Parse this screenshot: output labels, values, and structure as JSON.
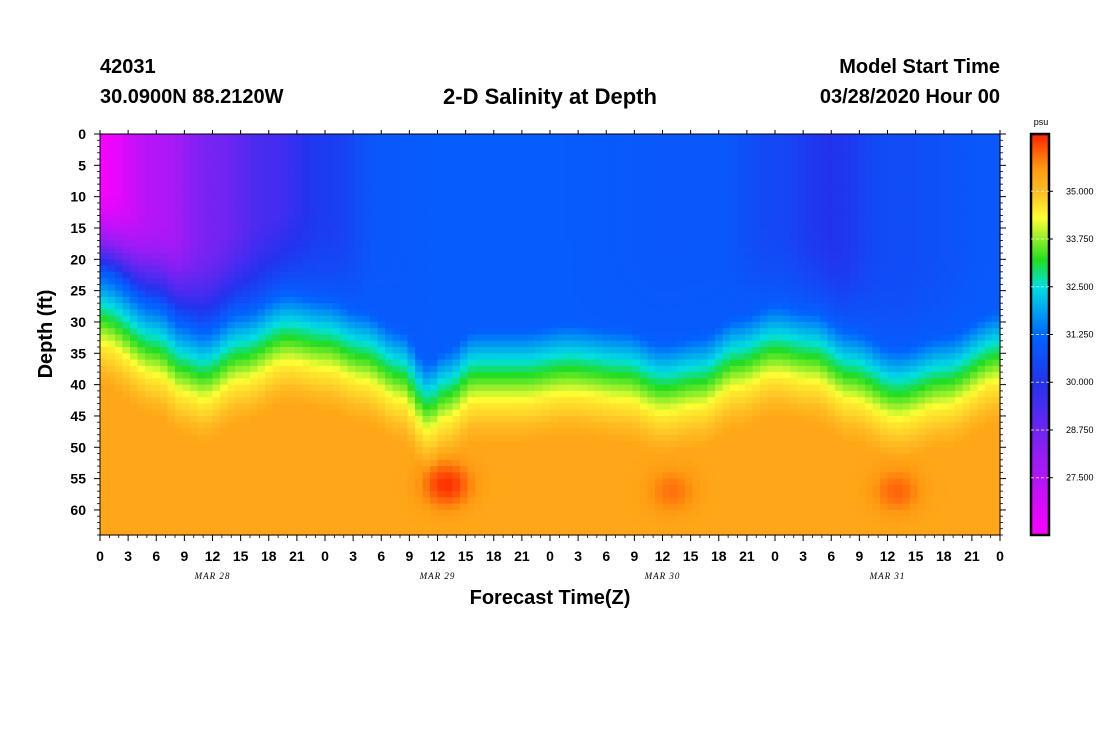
{
  "header": {
    "station_id": "42031",
    "coordinates": "30.0900N 88.2120W",
    "title": "2-D Salinity at Depth",
    "model_start_label": "Model Start Time",
    "model_start_value": "03/28/2020 Hour 00"
  },
  "chart_data": {
    "type": "heatmap",
    "title": "2-D Salinity at Depth",
    "xlabel": "Forecast Time(Z)",
    "ylabel": "Depth (ft)",
    "x_range_hours": [
      0,
      96
    ],
    "ylim": [
      0,
      64
    ],
    "y_reversed": true,
    "x_ticks": [
      {
        "hour": 0,
        "label": "0"
      },
      {
        "hour": 3,
        "label": "3"
      },
      {
        "hour": 6,
        "label": "6"
      },
      {
        "hour": 9,
        "label": "9"
      },
      {
        "hour": 12,
        "label": "12"
      },
      {
        "hour": 15,
        "label": "15"
      },
      {
        "hour": 18,
        "label": "18"
      },
      {
        "hour": 21,
        "label": "21"
      },
      {
        "hour": 24,
        "label": "0"
      },
      {
        "hour": 27,
        "label": "3"
      },
      {
        "hour": 30,
        "label": "6"
      },
      {
        "hour": 33,
        "label": "9"
      },
      {
        "hour": 36,
        "label": "12"
      },
      {
        "hour": 39,
        "label": "15"
      },
      {
        "hour": 42,
        "label": "18"
      },
      {
        "hour": 45,
        "label": "21"
      },
      {
        "hour": 48,
        "label": "0"
      },
      {
        "hour": 51,
        "label": "3"
      },
      {
        "hour": 54,
        "label": "6"
      },
      {
        "hour": 57,
        "label": "9"
      },
      {
        "hour": 60,
        "label": "12"
      },
      {
        "hour": 63,
        "label": "15"
      },
      {
        "hour": 66,
        "label": "18"
      },
      {
        "hour": 69,
        "label": "21"
      },
      {
        "hour": 72,
        "label": "0"
      },
      {
        "hour": 75,
        "label": "3"
      },
      {
        "hour": 78,
        "label": "6"
      },
      {
        "hour": 81,
        "label": "9"
      },
      {
        "hour": 84,
        "label": "12"
      },
      {
        "hour": 87,
        "label": "15"
      },
      {
        "hour": 90,
        "label": "18"
      },
      {
        "hour": 93,
        "label": "21"
      },
      {
        "hour": 96,
        "label": "0"
      }
    ],
    "date_labels": [
      {
        "hour": 12,
        "label": "MAR 28"
      },
      {
        "hour": 36,
        "label": "MAR 29"
      },
      {
        "hour": 60,
        "label": "MAR 30"
      },
      {
        "hour": 84,
        "label": "MAR 31"
      }
    ],
    "y_ticks": [
      0,
      5,
      10,
      15,
      20,
      25,
      30,
      35,
      40,
      45,
      50,
      55,
      60
    ],
    "colorbar": {
      "unit": "psu",
      "range": [
        26.0,
        36.5
      ],
      "ticks": [
        {
          "value": 35.0,
          "label": "35.000"
        },
        {
          "value": 33.75,
          "label": "33.750"
        },
        {
          "value": 32.5,
          "label": "32.500"
        },
        {
          "value": 31.25,
          "label": "31.250"
        },
        {
          "value": 30.0,
          "label": "30.000"
        },
        {
          "value": 28.75,
          "label": "28.750"
        },
        {
          "value": 27.5,
          "label": "27.500"
        }
      ],
      "stops": [
        {
          "value": 26.0,
          "color": "#ff00ff"
        },
        {
          "value": 28.0,
          "color": "#9a1cf5"
        },
        {
          "value": 30.0,
          "color": "#2233ee"
        },
        {
          "value": 31.25,
          "color": "#0066ff"
        },
        {
          "value": 32.5,
          "color": "#00e0e0"
        },
        {
          "value": 33.2,
          "color": "#22dd22"
        },
        {
          "value": 34.3,
          "color": "#ffff33"
        },
        {
          "value": 35.0,
          "color": "#ffbb22"
        },
        {
          "value": 35.6,
          "color": "#ff9911"
        },
        {
          "value": 36.5,
          "color": "#ff2200"
        }
      ]
    },
    "surface_salinity": [
      {
        "hour": 0,
        "value": 26.2
      },
      {
        "hour": 6,
        "value": 27.5
      },
      {
        "hour": 12,
        "value": 28.6
      },
      {
        "hour": 18,
        "value": 29.4
      },
      {
        "hour": 24,
        "value": 30.2
      },
      {
        "hour": 30,
        "value": 30.9
      },
      {
        "hour": 36,
        "value": 31.0
      },
      {
        "hour": 48,
        "value": 31.0
      },
      {
        "hour": 60,
        "value": 30.9
      },
      {
        "hour": 66,
        "value": 30.9
      },
      {
        "hour": 72,
        "value": 30.5
      },
      {
        "hour": 78,
        "value": 30.0
      },
      {
        "hour": 84,
        "value": 30.6
      },
      {
        "hour": 96,
        "value": 30.9
      }
    ],
    "halocline_depth_ft": [
      {
        "hour": 0,
        "value": 28
      },
      {
        "hour": 6,
        "value": 33
      },
      {
        "hour": 9,
        "value": 36
      },
      {
        "hour": 11,
        "value": 37
      },
      {
        "hour": 15,
        "value": 34
      },
      {
        "hour": 20,
        "value": 31
      },
      {
        "hour": 24,
        "value": 32
      },
      {
        "hour": 28,
        "value": 34
      },
      {
        "hour": 32,
        "value": 37
      },
      {
        "hour": 35,
        "value": 42
      },
      {
        "hour": 37,
        "value": 40
      },
      {
        "hour": 40,
        "value": 37
      },
      {
        "hour": 45,
        "value": 37
      },
      {
        "hour": 50,
        "value": 36
      },
      {
        "hour": 56,
        "value": 37
      },
      {
        "hour": 60,
        "value": 39
      },
      {
        "hour": 64,
        "value": 38
      },
      {
        "hour": 68,
        "value": 35
      },
      {
        "hour": 72,
        "value": 33
      },
      {
        "hour": 76,
        "value": 34
      },
      {
        "hour": 80,
        "value": 37
      },
      {
        "hour": 85,
        "value": 40
      },
      {
        "hour": 90,
        "value": 38
      },
      {
        "hour": 96,
        "value": 34
      }
    ],
    "bottom_salinity": 35.35,
    "bottom_maxima": [
      {
        "hour": 37,
        "depth_ft": 56,
        "value": 36.4
      },
      {
        "hour": 61,
        "depth_ft": 57,
        "value": 35.9
      },
      {
        "hour": 85,
        "depth_ft": 57,
        "value": 36.0
      }
    ]
  }
}
